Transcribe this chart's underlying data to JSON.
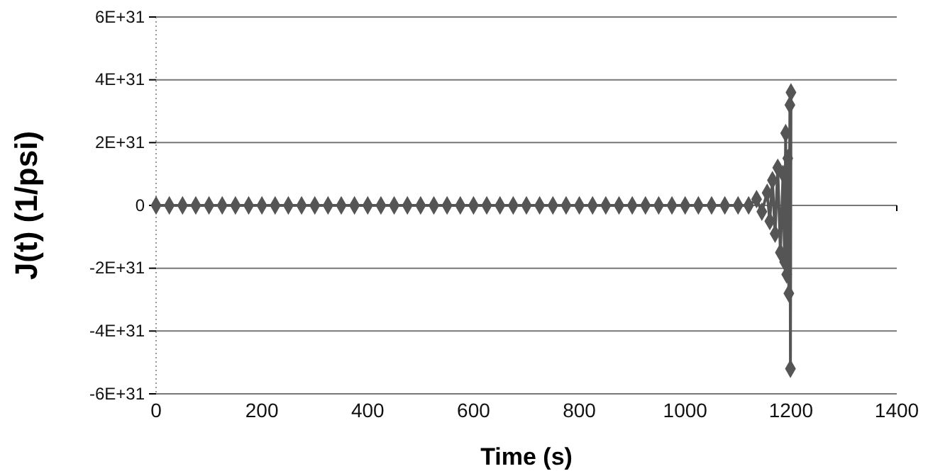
{
  "chart_data": {
    "type": "line",
    "xlabel": "Time (s)",
    "ylabel": "J(t) (1/psi)",
    "xlim": [
      0,
      1400
    ],
    "xticks": [
      0,
      200,
      400,
      600,
      800,
      1000,
      1200,
      1400
    ],
    "ylim": [
      -6e+31,
      6e+31
    ],
    "yticks": [
      {
        "value": -6e+31,
        "label": "-6E+31"
      },
      {
        "value": -4e+31,
        "label": "-4E+31"
      },
      {
        "value": -2e+31,
        "label": "-2E+31"
      },
      {
        "value": 0,
        "label": "0"
      },
      {
        "value": 2e+31,
        "label": "2E+31"
      },
      {
        "value": 4e+31,
        "label": "4E+31"
      },
      {
        "value": 6e+31,
        "label": "6E+31"
      }
    ],
    "grid": "y",
    "marker": "diamond",
    "line_style": "solid",
    "series": [
      {
        "color": "#555555",
        "x": [
          0,
          25,
          50,
          75,
          100,
          125,
          150,
          175,
          200,
          225,
          250,
          275,
          300,
          325,
          350,
          375,
          400,
          425,
          450,
          475,
          500,
          525,
          550,
          575,
          600,
          625,
          650,
          675,
          700,
          725,
          750,
          775,
          800,
          825,
          850,
          875,
          900,
          925,
          950,
          975,
          1000,
          1025,
          1050,
          1075,
          1100,
          1120,
          1135,
          1145,
          1155,
          1160,
          1165,
          1170,
          1175,
          1180,
          1185,
          1188,
          1190,
          1192,
          1194,
          1196,
          1198,
          1199,
          1200
        ],
        "values": [
          0,
          0,
          0,
          0,
          0,
          0,
          0,
          0,
          0,
          0,
          0,
          0,
          0,
          0,
          0,
          0,
          0,
          0,
          0,
          0,
          0,
          0,
          0,
          0,
          0,
          0,
          0,
          0,
          0,
          0,
          0,
          0,
          0,
          0,
          0,
          0,
          0,
          0,
          0,
          0,
          0,
          0,
          0,
          0,
          0,
          0,
          2e+30,
          -2e+30,
          4e+30,
          -5e+30,
          8e+30,
          -9e+30,
          1.2e+31,
          -1.5e+31,
          1e+31,
          -1.8e+31,
          2.3e+31,
          -2.2e+31,
          1.5e+31,
          -2.8e+31,
          3.2e+31,
          -5.2e+31,
          3.6e+31
        ]
      }
    ]
  }
}
